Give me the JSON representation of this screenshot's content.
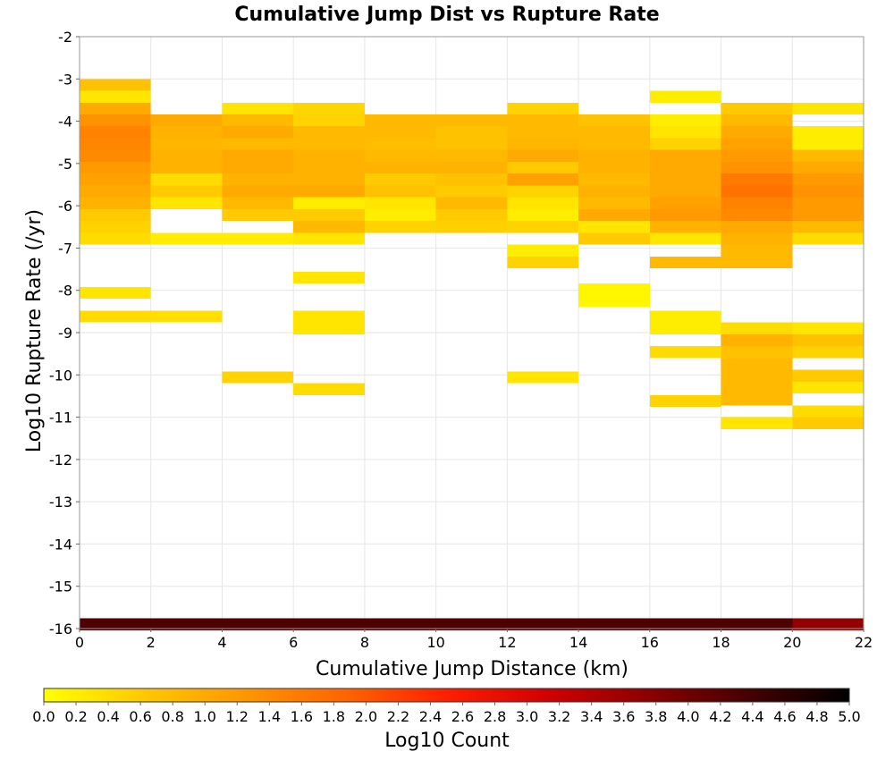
{
  "chart_data": {
    "type": "heatmap",
    "title": "Cumulative Jump Dist vs Rupture Rate",
    "xlabel": "Cumulative Jump Distance (km)",
    "ylabel": "Log10 Rupture Rate (/yr)",
    "xlim": [
      0,
      22
    ],
    "ylim": [
      -16,
      -2
    ],
    "x_ticks": [
      "0",
      "2",
      "4",
      "6",
      "8",
      "10",
      "12",
      "14",
      "16",
      "18",
      "20",
      "22"
    ],
    "y_ticks": [
      "-2",
      "-3",
      "-4",
      "-5",
      "-6",
      "-7",
      "-8",
      "-9",
      "-10",
      "-11",
      "-12",
      "-13",
      "-14",
      "-15",
      "-16"
    ],
    "x_bin_width": 2,
    "y_bin_height": 0.28,
    "grid": true,
    "colorbar": {
      "label": "Log10 Count",
      "min": 0,
      "max": 5,
      "ticks": [
        "0.0",
        "0.2",
        "0.4",
        "0.6",
        "0.8",
        "1.0",
        "1.2",
        "1.4",
        "1.6",
        "1.8",
        "2.0",
        "2.2",
        "2.4",
        "2.6",
        "2.8",
        "3.0",
        "3.2",
        "3.4",
        "3.6",
        "3.8",
        "4.0",
        "4.2",
        "4.4",
        "4.6",
        "4.8",
        "5.0"
      ],
      "colors": [
        "#ffff00",
        "#ffc800",
        "#ff9600",
        "#ff6400",
        "#ff1e00",
        "#d20000",
        "#8c0000",
        "#460000",
        "#000000"
      ]
    },
    "cells": [
      [
        0,
        -3.14,
        0.7
      ],
      [
        0,
        -3.42,
        0.3
      ],
      [
        0,
        -3.7,
        1.0
      ],
      [
        0,
        -3.98,
        1.3
      ],
      [
        0,
        -4.26,
        1.5
      ],
      [
        0,
        -4.54,
        1.45
      ],
      [
        0,
        -4.82,
        1.4
      ],
      [
        0,
        -5.1,
        1.2
      ],
      [
        0,
        -5.38,
        1.1
      ],
      [
        0,
        -5.66,
        1.0
      ],
      [
        0,
        -5.94,
        0.9
      ],
      [
        0,
        -6.22,
        0.6
      ],
      [
        0,
        -6.5,
        0.5
      ],
      [
        0,
        -6.78,
        0.4
      ],
      [
        0,
        -8.06,
        0.3
      ],
      [
        0,
        -8.62,
        0.4
      ],
      [
        0,
        -15.9,
        4.3
      ],
      [
        2,
        -3.98,
        1.0
      ],
      [
        2,
        -4.26,
        0.9
      ],
      [
        2,
        -4.54,
        0.85
      ],
      [
        2,
        -4.82,
        0.9
      ],
      [
        2,
        -5.1,
        0.9
      ],
      [
        2,
        -5.38,
        0.4
      ],
      [
        2,
        -5.66,
        0.6
      ],
      [
        2,
        -5.94,
        0.3
      ],
      [
        2,
        -6.78,
        0.2
      ],
      [
        2,
        -8.62,
        0.35
      ],
      [
        2,
        -15.9,
        4.3
      ],
      [
        4,
        -3.7,
        0.3
      ],
      [
        4,
        -3.98,
        0.8
      ],
      [
        4,
        -4.26,
        1.0
      ],
      [
        4,
        -4.54,
        0.8
      ],
      [
        4,
        -4.82,
        1.0
      ],
      [
        4,
        -5.1,
        1.0
      ],
      [
        4,
        -5.38,
        0.9
      ],
      [
        4,
        -5.66,
        1.0
      ],
      [
        4,
        -5.94,
        0.8
      ],
      [
        4,
        -6.22,
        0.6
      ],
      [
        4,
        -6.78,
        0.2
      ],
      [
        4,
        -10.06,
        0.5
      ],
      [
        4,
        -15.9,
        4.3
      ],
      [
        6,
        -3.7,
        0.45
      ],
      [
        6,
        -3.98,
        0.5
      ],
      [
        6,
        -4.26,
        0.8
      ],
      [
        6,
        -4.54,
        0.8
      ],
      [
        6,
        -4.82,
        0.9
      ],
      [
        6,
        -5.1,
        0.9
      ],
      [
        6,
        -5.38,
        0.9
      ],
      [
        6,
        -5.66,
        1.0
      ],
      [
        6,
        -5.94,
        0.2
      ],
      [
        6,
        -6.22,
        0.6
      ],
      [
        6,
        -6.5,
        0.8
      ],
      [
        6,
        -6.78,
        0.3
      ],
      [
        6,
        -7.7,
        0.3
      ],
      [
        6,
        -8.62,
        0.3
      ],
      [
        6,
        -8.9,
        0.3
      ],
      [
        6,
        -10.34,
        0.4
      ],
      [
        6,
        -15.9,
        4.3
      ],
      [
        8,
        -3.98,
        0.8
      ],
      [
        8,
        -4.26,
        0.8
      ],
      [
        8,
        -4.54,
        0.75
      ],
      [
        8,
        -4.82,
        0.8
      ],
      [
        8,
        -5.1,
        0.9
      ],
      [
        8,
        -5.38,
        0.6
      ],
      [
        8,
        -5.66,
        0.7
      ],
      [
        8,
        -5.94,
        0.3
      ],
      [
        8,
        -6.22,
        0.2
      ],
      [
        8,
        -6.5,
        0.5
      ],
      [
        8,
        -15.9,
        4.3
      ],
      [
        10,
        -3.98,
        0.8
      ],
      [
        10,
        -4.26,
        0.7
      ],
      [
        10,
        -4.54,
        0.7
      ],
      [
        10,
        -4.82,
        0.8
      ],
      [
        10,
        -5.1,
        0.9
      ],
      [
        10,
        -5.38,
        0.7
      ],
      [
        10,
        -5.66,
        0.6
      ],
      [
        10,
        -5.94,
        0.8
      ],
      [
        10,
        -6.22,
        0.6
      ],
      [
        10,
        -6.5,
        0.55
      ],
      [
        10,
        -15.9,
        4.3
      ],
      [
        12,
        -3.7,
        0.5
      ],
      [
        12,
        -3.98,
        0.8
      ],
      [
        12,
        -4.26,
        0.8
      ],
      [
        12,
        -4.54,
        0.85
      ],
      [
        12,
        -4.82,
        1.0
      ],
      [
        12,
        -5.1,
        0.6
      ],
      [
        12,
        -5.38,
        1.1
      ],
      [
        12,
        -5.66,
        0.5
      ],
      [
        12,
        -5.94,
        0.3
      ],
      [
        12,
        -6.22,
        0.2
      ],
      [
        12,
        -6.5,
        0.5
      ],
      [
        12,
        -7.06,
        0.2
      ],
      [
        12,
        -7.34,
        0.5
      ],
      [
        12,
        -10.06,
        0.3
      ],
      [
        12,
        -15.9,
        4.3
      ],
      [
        14,
        -3.98,
        0.7
      ],
      [
        14,
        -4.26,
        0.8
      ],
      [
        14,
        -4.54,
        0.8
      ],
      [
        14,
        -4.82,
        0.9
      ],
      [
        14,
        -5.1,
        0.9
      ],
      [
        14,
        -5.38,
        0.8
      ],
      [
        14,
        -5.66,
        0.9
      ],
      [
        14,
        -5.94,
        0.8
      ],
      [
        14,
        -6.22,
        1.0
      ],
      [
        14,
        -6.5,
        0.3
      ],
      [
        14,
        -6.78,
        0.6
      ],
      [
        14,
        -7.98,
        0.1
      ],
      [
        14,
        -8.26,
        0.1
      ],
      [
        14,
        -15.9,
        4.3
      ],
      [
        16,
        -3.42,
        0.2
      ],
      [
        16,
        -3.98,
        0.2
      ],
      [
        16,
        -4.26,
        0.3
      ],
      [
        16,
        -4.54,
        0.5
      ],
      [
        16,
        -4.82,
        1.0
      ],
      [
        16,
        -5.1,
        1.0
      ],
      [
        16,
        -5.38,
        1.0
      ],
      [
        16,
        -5.66,
        1.0
      ],
      [
        16,
        -5.94,
        1.1
      ],
      [
        16,
        -6.22,
        1.2
      ],
      [
        16,
        -6.5,
        0.9
      ],
      [
        16,
        -6.78,
        0.3
      ],
      [
        16,
        -7.34,
        0.8
      ],
      [
        16,
        -8.62,
        0.2
      ],
      [
        16,
        -8.9,
        0.2
      ],
      [
        16,
        -9.46,
        0.4
      ],
      [
        16,
        -10.62,
        0.5
      ],
      [
        16,
        -15.9,
        4.3
      ],
      [
        18,
        -3.7,
        0.6
      ],
      [
        18,
        -3.98,
        0.8
      ],
      [
        18,
        -4.26,
        1.0
      ],
      [
        18,
        -4.54,
        1.1
      ],
      [
        18,
        -4.82,
        1.2
      ],
      [
        18,
        -5.1,
        1.3
      ],
      [
        18,
        -5.38,
        1.6
      ],
      [
        18,
        -5.66,
        1.7
      ],
      [
        18,
        -5.94,
        1.5
      ],
      [
        18,
        -6.22,
        1.4
      ],
      [
        18,
        -6.5,
        1.0
      ],
      [
        18,
        -6.78,
        0.9
      ],
      [
        18,
        -7.06,
        0.8
      ],
      [
        18,
        -7.34,
        0.8
      ],
      [
        18,
        -8.9,
        0.4
      ],
      [
        18,
        -9.18,
        0.9
      ],
      [
        18,
        -9.46,
        0.7
      ],
      [
        18,
        -9.74,
        0.8
      ],
      [
        18,
        -10.02,
        0.8
      ],
      [
        18,
        -10.3,
        0.8
      ],
      [
        18,
        -10.58,
        0.8
      ],
      [
        18,
        -11.14,
        0.3
      ],
      [
        18,
        -15.9,
        4.3
      ],
      [
        20,
        -3.7,
        0.3
      ],
      [
        20,
        -4.26,
        0.2
      ],
      [
        20,
        -4.54,
        0.2
      ],
      [
        20,
        -4.82,
        0.8
      ],
      [
        20,
        -5.1,
        1.0
      ],
      [
        20,
        -5.38,
        1.2
      ],
      [
        20,
        -5.66,
        1.3
      ],
      [
        20,
        -5.94,
        1.2
      ],
      [
        20,
        -6.22,
        1.2
      ],
      [
        20,
        -6.5,
        0.8
      ],
      [
        20,
        -6.78,
        0.4
      ],
      [
        20,
        -8.9,
        0.3
      ],
      [
        20,
        -9.18,
        0.7
      ],
      [
        20,
        -9.46,
        0.5
      ],
      [
        20,
        -10.02,
        0.6
      ],
      [
        20,
        -10.3,
        0.3
      ],
      [
        20,
        -10.86,
        0.4
      ],
      [
        20,
        -11.14,
        0.6
      ],
      [
        20,
        -15.9,
        3.7
      ]
    ]
  }
}
